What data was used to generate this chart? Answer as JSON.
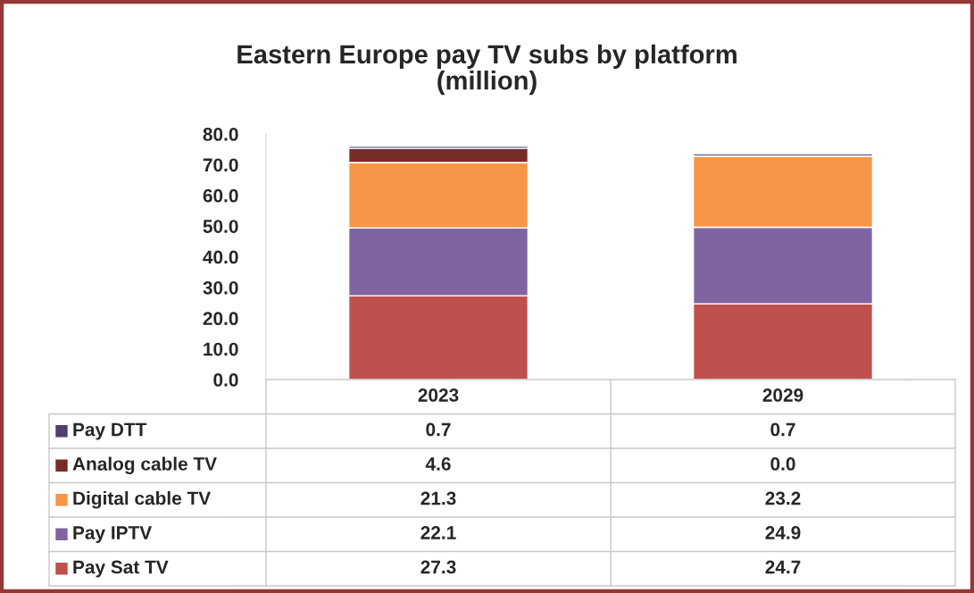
{
  "chart_data": {
    "type": "bar",
    "title": "Eastern Europe pay TV subs by platform\n(million)",
    "categories": [
      "2023",
      "2029"
    ],
    "stacked": true,
    "legend": "bottom",
    "grid": false,
    "ylim": [
      0,
      80
    ],
    "yticks": [
      {
        "value": 0,
        "label": "0.0"
      },
      {
        "value": 10,
        "label": "10.0"
      },
      {
        "value": 20,
        "label": "20.0"
      },
      {
        "value": 30,
        "label": "30.0"
      },
      {
        "value": 40,
        "label": "40.0"
      },
      {
        "value": 50,
        "label": "50.0"
      },
      {
        "value": 60,
        "label": "60.0"
      },
      {
        "value": 70,
        "label": "70.0"
      },
      {
        "value": 80,
        "label": "80.0"
      }
    ],
    "series": [
      {
        "name": "Pay Sat TV",
        "color": "#c0504d",
        "values": [
          27.3,
          24.7
        ],
        "value_labels": [
          "27.3",
          "24.7"
        ]
      },
      {
        "name": "Pay IPTV",
        "color": "#8064a2",
        "values": [
          22.1,
          24.9
        ],
        "value_labels": [
          "22.1",
          "24.9"
        ]
      },
      {
        "name": "Digital cable TV",
        "color": "#f79646",
        "values": [
          21.3,
          23.2
        ],
        "value_labels": [
          "21.3",
          "23.2"
        ]
      },
      {
        "name": "Analog cable TV",
        "color": "#772c2a",
        "values": [
          4.6,
          0.0
        ],
        "value_labels": [
          "4.6",
          "0.0"
        ]
      },
      {
        "name": "Pay DTT",
        "color": "#4f3f6e",
        "values": [
          0.7,
          0.7
        ],
        "value_labels": [
          "0.7",
          "0.7"
        ]
      }
    ]
  }
}
